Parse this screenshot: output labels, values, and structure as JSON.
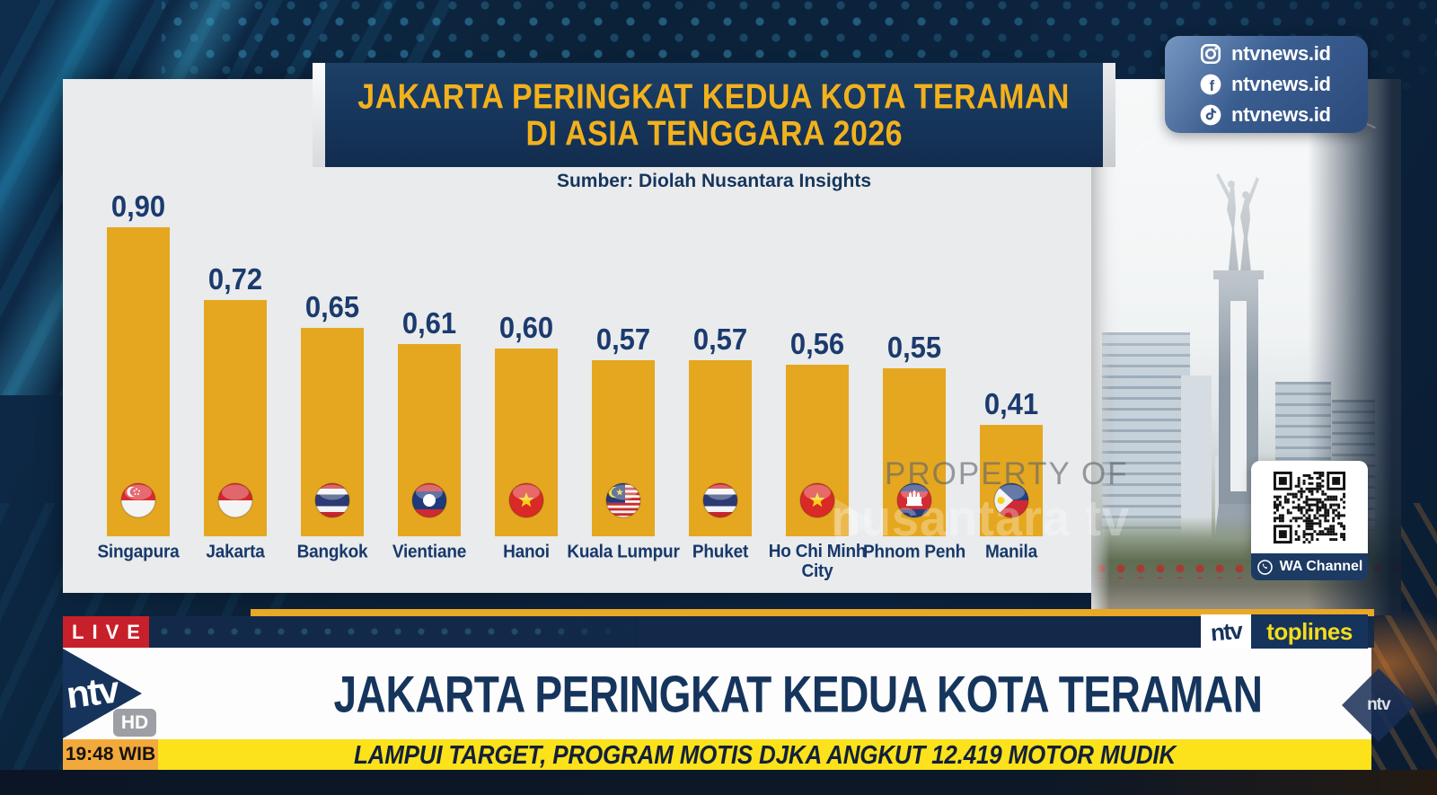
{
  "infographic": {
    "title_line1": "JAKARTA PERINGKAT KEDUA KOTA TERAMAN",
    "title_line2": "DI ASIA TENGGARA 2026",
    "source": "Sumber: Diolah Nusantara Insights",
    "watermark_line1": "PROPERTY OF",
    "watermark_line2": "nusantara tv"
  },
  "chart_data": {
    "type": "bar",
    "title": "Jakarta Peringkat Kedua Kota Teraman di Asia Tenggara 2026",
    "categories": [
      "Singapura",
      "Jakarta",
      "Bangkok",
      "Vientiane",
      "Hanoi",
      "Kuala Lumpur",
      "Phuket",
      "Ho Chi Minh City",
      "Phnom Penh",
      "Manila"
    ],
    "values": [
      0.9,
      0.72,
      0.65,
      0.61,
      0.6,
      0.57,
      0.57,
      0.56,
      0.55,
      0.41
    ],
    "value_labels": [
      "0,90",
      "0,72",
      "0,65",
      "0,61",
      "0,60",
      "0,57",
      "0,57",
      "0,56",
      "0,55",
      "0,41"
    ],
    "flags": [
      "singapore",
      "indonesia",
      "thailand",
      "laos",
      "vietnam",
      "malaysia",
      "thailand",
      "vietnam",
      "cambodia",
      "philippines"
    ],
    "bar_color": "#e5a71f",
    "label_color": "#17386b",
    "ylim": [
      0,
      1
    ],
    "grid": false,
    "legend": "none"
  },
  "social_panel": {
    "items": [
      {
        "icon": "instagram-icon",
        "handle": "ntvnews.id"
      },
      {
        "icon": "facebook-icon",
        "handle": "ntvnews.id"
      },
      {
        "icon": "tiktok-icon",
        "handle": "ntvnews.id"
      }
    ]
  },
  "qr_panel": {
    "label": "WA Channel"
  },
  "broadcast": {
    "live_label": "LIVE",
    "channel_name": "ntv",
    "hd_label": "HD",
    "time": "19:48 WIB",
    "toplines_ntv": "ntv",
    "toplines_label": "toplines",
    "corner_logo": "ntv",
    "headline": "JAKARTA PERINGKAT KEDUA KOTA TERAMAN",
    "ticker": "LAMPUI TARGET, PROGRAM MOTIS DJKA ANGKUT 12.419 MOTOR MUDIK"
  },
  "colors": {
    "accent_gold": "#e9a825",
    "banner_navy": "#16355b",
    "title_yellow": "#f2b11c",
    "live_red": "#c8202a",
    "ticker_yellow": "#fbe21b",
    "time_orange": "#f2a93b"
  }
}
